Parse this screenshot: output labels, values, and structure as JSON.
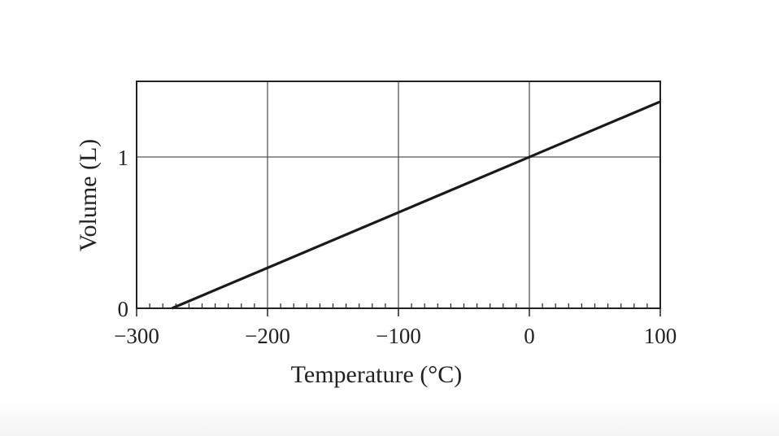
{
  "chart_data": {
    "type": "line",
    "title": "",
    "xlabel": "Temperature (°C)",
    "ylabel": "Volume (L)",
    "xlim": [
      -300,
      100
    ],
    "ylim": [
      0,
      1.5
    ],
    "x_ticks": [
      -300,
      -200,
      -100,
      0,
      100
    ],
    "x_tick_labels": [
      "−300",
      "−200",
      "−100",
      "0",
      "100"
    ],
    "x_minor_tick_step": 10,
    "y_ticks": [
      0,
      1
    ],
    "y_tick_labels": [
      "0",
      "1"
    ],
    "grid": true,
    "series": [
      {
        "x": [
          -273,
          100
        ],
        "y": [
          0,
          1.366
        ]
      }
    ],
    "colors": {
      "line": "#1a1a1a",
      "grid": "#555555",
      "frame": "#222222"
    }
  }
}
